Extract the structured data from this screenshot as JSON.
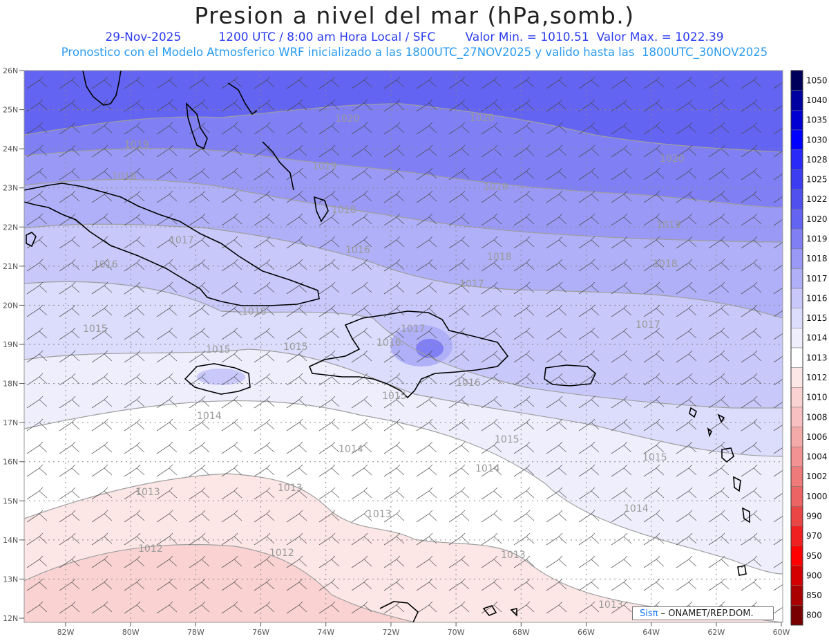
{
  "header": {
    "title": "Presion a nivel del mar (hPa,somb.)",
    "date": "29-Nov-2025",
    "time": "1200 UTC / 8:00 am Hora Local / SFC",
    "valmin": "Valor Min. = 1010.51",
    "valmax": "Valor Max. = 1022.39",
    "subtitle": "Pronostico con el Modelo Atmosferico WRF inicializado a las 1800UTC_27NOV2025 y valido hasta las  1800UTC_30NOV2025"
  },
  "map": {
    "lat_labels": [
      "26N",
      "25N",
      "24N",
      "23N",
      "22N",
      "21N",
      "20N",
      "19N",
      "18N",
      "17N",
      "16N",
      "15N",
      "14N",
      "13N",
      "12N"
    ],
    "lon_labels": [
      "82W",
      "80W",
      "78W",
      "76W",
      "74W",
      "72W",
      "70W",
      "68W",
      "66W",
      "64W",
      "62W",
      "60W"
    ],
    "contour_labels": [
      {
        "text": "1020"
      },
      {
        "text": "1020"
      },
      {
        "text": "1020"
      },
      {
        "text": "1019"
      },
      {
        "text": "1019"
      },
      {
        "text": "1019"
      },
      {
        "text": "1019"
      },
      {
        "text": "1018"
      },
      {
        "text": "1018"
      },
      {
        "text": "1018"
      },
      {
        "text": "1018"
      },
      {
        "text": "1017"
      },
      {
        "text": "1017"
      },
      {
        "text": "1017"
      },
      {
        "text": "1017"
      },
      {
        "text": "1016"
      },
      {
        "text": "1016"
      },
      {
        "text": "1016"
      },
      {
        "text": "1016"
      },
      {
        "text": "1016"
      },
      {
        "text": "1015"
      },
      {
        "text": "1015"
      },
      {
        "text": "1015"
      },
      {
        "text": "1015"
      },
      {
        "text": "1015"
      },
      {
        "text": "1015"
      },
      {
        "text": "1014"
      },
      {
        "text": "1014"
      },
      {
        "text": "1014"
      },
      {
        "text": "1014"
      },
      {
        "text": "1013"
      },
      {
        "text": "1013"
      },
      {
        "text": "1013"
      },
      {
        "text": "1013"
      },
      {
        "text": "1013"
      },
      {
        "text": "1012"
      },
      {
        "text": "1012"
      }
    ]
  },
  "colorbar": {
    "levels": [
      "1050",
      "1040",
      "1035",
      "1030",
      "1028",
      "1025",
      "1022",
      "1020",
      "1019",
      "1018",
      "1017",
      "1016",
      "1015",
      "1014",
      "1013",
      "1012",
      "1010",
      "1008",
      "1006",
      "1004",
      "1002",
      "1000",
      "990",
      "970",
      "950",
      "900",
      "850",
      "800"
    ],
    "colors": [
      "#00005a",
      "#0000a0",
      "#0000d2",
      "#0000ff",
      "#2a2af8",
      "#3c3cf0",
      "#5050ee",
      "#6464f2",
      "#8080f4",
      "#9a9af6",
      "#b0b0f8",
      "#c8c8fa",
      "#dcdcfc",
      "#eeeefd",
      "#ffffff",
      "#fde6e6",
      "#fad2d2",
      "#f8c0c0",
      "#f5aaaa",
      "#f29292",
      "#ef7a7a",
      "#ec6464",
      "#ea4646",
      "#f02020",
      "#ff0000",
      "#d40000",
      "#aa0000",
      "#780000"
    ]
  },
  "logo": {
    "brand": "Sisπ",
    "rest": " – ONAMET/REP.DOM."
  }
}
